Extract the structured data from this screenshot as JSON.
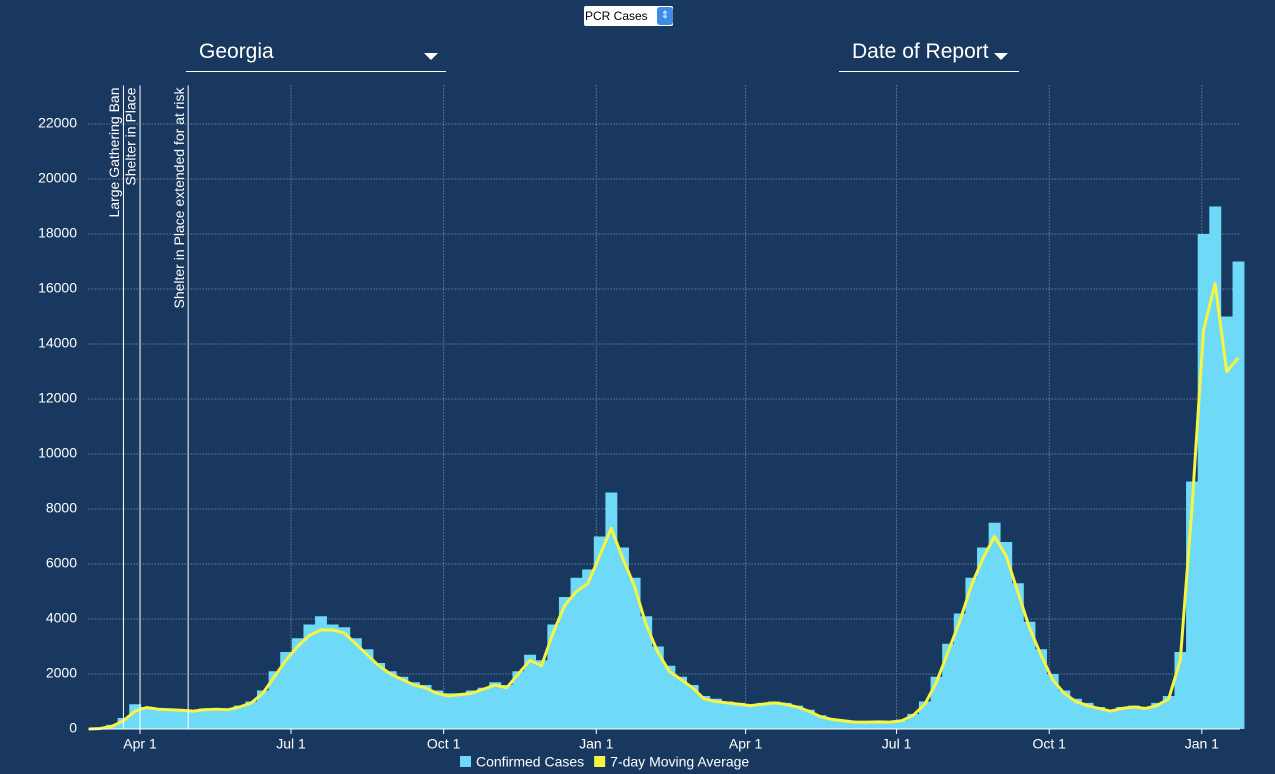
{
  "controls": {
    "metric_select": "PCR Cases",
    "region": "Georgia",
    "date_basis": "Date of Report"
  },
  "chart_data": {
    "type": "bar",
    "x": [
      0,
      7,
      14,
      21,
      28,
      35,
      42,
      49,
      56,
      63,
      70,
      77,
      84,
      91,
      98,
      105,
      112,
      119,
      126,
      133,
      140,
      147,
      154,
      161,
      168,
      175,
      182,
      189,
      196,
      203,
      210,
      217,
      224,
      231,
      238,
      245,
      252,
      259,
      266,
      273,
      280,
      287,
      294,
      301,
      308,
      315,
      322,
      329,
      336,
      343,
      350,
      357,
      364,
      371,
      378,
      385,
      392,
      399,
      406,
      413,
      420,
      427,
      434,
      441,
      448,
      455,
      462,
      469,
      476,
      483,
      490,
      497,
      504,
      511,
      518,
      525,
      532,
      539,
      546,
      553,
      560,
      567,
      574,
      581,
      588,
      595,
      602,
      609,
      616,
      623,
      630,
      637,
      644,
      651,
      658,
      665,
      672,
      679,
      686,
      693
    ],
    "series": [
      {
        "name": "Confirmed Cases",
        "color": "#6fd9f8",
        "mark": "bar",
        "values": [
          0,
          30,
          150,
          400,
          900,
          800,
          750,
          700,
          700,
          650,
          750,
          700,
          750,
          850,
          1000,
          1400,
          2100,
          2800,
          3300,
          3800,
          4100,
          3800,
          3700,
          3300,
          2900,
          2400,
          2100,
          1900,
          1700,
          1600,
          1400,
          1300,
          1300,
          1400,
          1500,
          1700,
          1600,
          2100,
          2700,
          2500,
          3800,
          4800,
          5500,
          5800,
          7000,
          8600,
          6600,
          5500,
          4100,
          3000,
          2300,
          1900,
          1600,
          1200,
          1100,
          1000,
          950,
          900,
          950,
          1000,
          950,
          850,
          700,
          500,
          380,
          320,
          280,
          270,
          280,
          270,
          320,
          550,
          1000,
          1900,
          3100,
          4200,
          5500,
          6600,
          7500,
          6800,
          5300,
          3900,
          2900,
          2000,
          1400,
          1100,
          950,
          800,
          700,
          800,
          850,
          800,
          950,
          1200,
          2800,
          9000,
          18000,
          19000,
          15000,
          17000
        ]
      },
      {
        "name": "7-day Moving Average",
        "color": "#f5f542",
        "mark": "line",
        "values": [
          0,
          20,
          100,
          300,
          650,
          780,
          720,
          700,
          680,
          650,
          700,
          720,
          700,
          800,
          950,
          1300,
          1900,
          2500,
          3000,
          3400,
          3600,
          3600,
          3500,
          3100,
          2700,
          2300,
          2000,
          1800,
          1600,
          1500,
          1300,
          1200,
          1250,
          1300,
          1450,
          1600,
          1500,
          2000,
          2500,
          2300,
          3500,
          4500,
          5000,
          5300,
          6300,
          7300,
          6200,
          5200,
          3800,
          2800,
          2100,
          1800,
          1500,
          1100,
          1000,
          950,
          900,
          850,
          900,
          950,
          900,
          800,
          650,
          450,
          350,
          300,
          250,
          250,
          260,
          250,
          300,
          500,
          900,
          1700,
          2800,
          3900,
          5200,
          6200,
          7000,
          6300,
          5000,
          3700,
          2700,
          1800,
          1300,
          1000,
          850,
          750,
          650,
          750,
          800,
          750,
          850,
          1100,
          2500,
          8000,
          14500,
          16200,
          13000,
          13500
        ]
      }
    ],
    "xlim": [
      0,
      694
    ],
    "xticks": [
      {
        "value": 31,
        "label": "Apr 1"
      },
      {
        "value": 122,
        "label": "Jul 1"
      },
      {
        "value": 214,
        "label": "Oct 1"
      },
      {
        "value": 306,
        "label": "Jan 1"
      },
      {
        "value": 396,
        "label": "Apr 1"
      },
      {
        "value": 487,
        "label": "Jul 1"
      },
      {
        "value": 579,
        "label": "Oct 1"
      },
      {
        "value": 671,
        "label": "Jan 1"
      }
    ],
    "ylim": [
      0,
      23400
    ],
    "yticks": [
      0,
      2000,
      4000,
      6000,
      8000,
      10000,
      12000,
      14000,
      16000,
      18000,
      20000,
      22000
    ],
    "grid": true,
    "annotations": [
      {
        "text": "Large Gathering Ban",
        "x": 21
      },
      {
        "text": "Shelter in Place",
        "x": 31
      },
      {
        "text": "Shelter in Place extended for at risk",
        "x": 60
      }
    ]
  }
}
